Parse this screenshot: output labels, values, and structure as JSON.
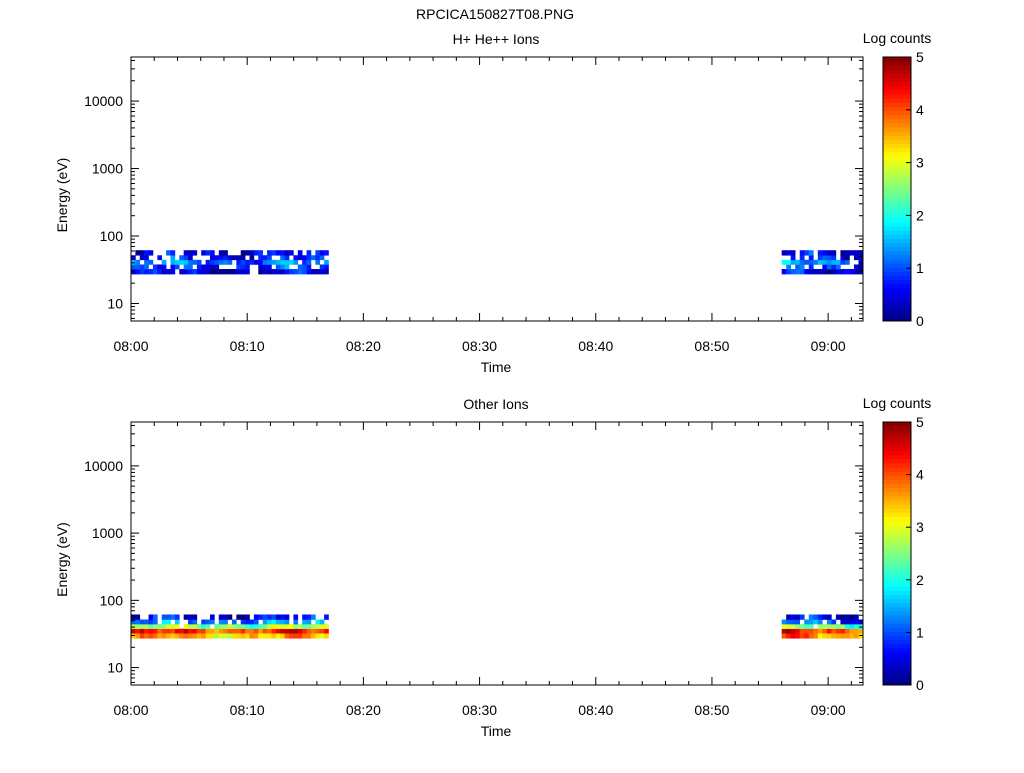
{
  "figure_title": "RPCICA150827T08.PNG",
  "colorbar_ticks": [
    "0",
    "1",
    "2",
    "3",
    "4",
    "5"
  ],
  "chart_data": [
    {
      "type": "heatmap",
      "title": "H+ He++ Ions",
      "xlabel": "Time",
      "ylabel": "Energy (eV)",
      "colorbar_label": "Log counts",
      "colorbar_range": [
        0,
        5
      ],
      "y_scale": "log",
      "ylim": [
        5.5,
        45000
      ],
      "xlim": [
        "08:00",
        "09:03"
      ],
      "x_ticks": [
        "08:00",
        "08:10",
        "08:20",
        "08:30",
        "08:40",
        "08:50",
        "09:00"
      ],
      "y_ticks": [
        "10",
        "100",
        "1000",
        "10000"
      ],
      "energy_bins": [
        30,
        35,
        41,
        48,
        56
      ],
      "segments": [
        {
          "start": "08:00",
          "end": "08:17",
          "levels": [
            0.4,
            0.7,
            1.1,
            0.6,
            0.5
          ],
          "gaps": [
            0.05,
            0.3,
            0.2,
            0.3,
            0.35
          ]
        },
        {
          "start": "08:56",
          "end": "09:03",
          "levels": [
            0.4,
            0.8,
            1.2,
            0.7,
            0.5
          ],
          "gaps": [
            0.05,
            0.3,
            0.2,
            0.35,
            0.35
          ]
        }
      ]
    },
    {
      "type": "heatmap",
      "title": "Other Ions",
      "xlabel": "Time",
      "ylabel": "Energy (eV)",
      "colorbar_label": "Log counts",
      "colorbar_range": [
        0,
        5
      ],
      "y_scale": "log",
      "ylim": [
        5.5,
        45000
      ],
      "xlim": [
        "08:00",
        "09:03"
      ],
      "x_ticks": [
        "08:00",
        "08:10",
        "08:20",
        "08:30",
        "08:40",
        "08:50",
        "09:00"
      ],
      "y_ticks": [
        "10",
        "100",
        "1000",
        "10000"
      ],
      "energy_bins": [
        30,
        35,
        41,
        48,
        56
      ],
      "segments": [
        {
          "start": "08:00",
          "end": "08:17",
          "levels": [
            3.4,
            4.1,
            2.6,
            1.2,
            0.5
          ],
          "gaps": [
            0.0,
            0.0,
            0.05,
            0.25,
            0.35
          ]
        },
        {
          "start": "08:56",
          "end": "09:03",
          "levels": [
            3.6,
            4.0,
            2.5,
            1.0,
            0.5
          ],
          "gaps": [
            0.0,
            0.0,
            0.05,
            0.3,
            0.35
          ]
        }
      ]
    }
  ]
}
